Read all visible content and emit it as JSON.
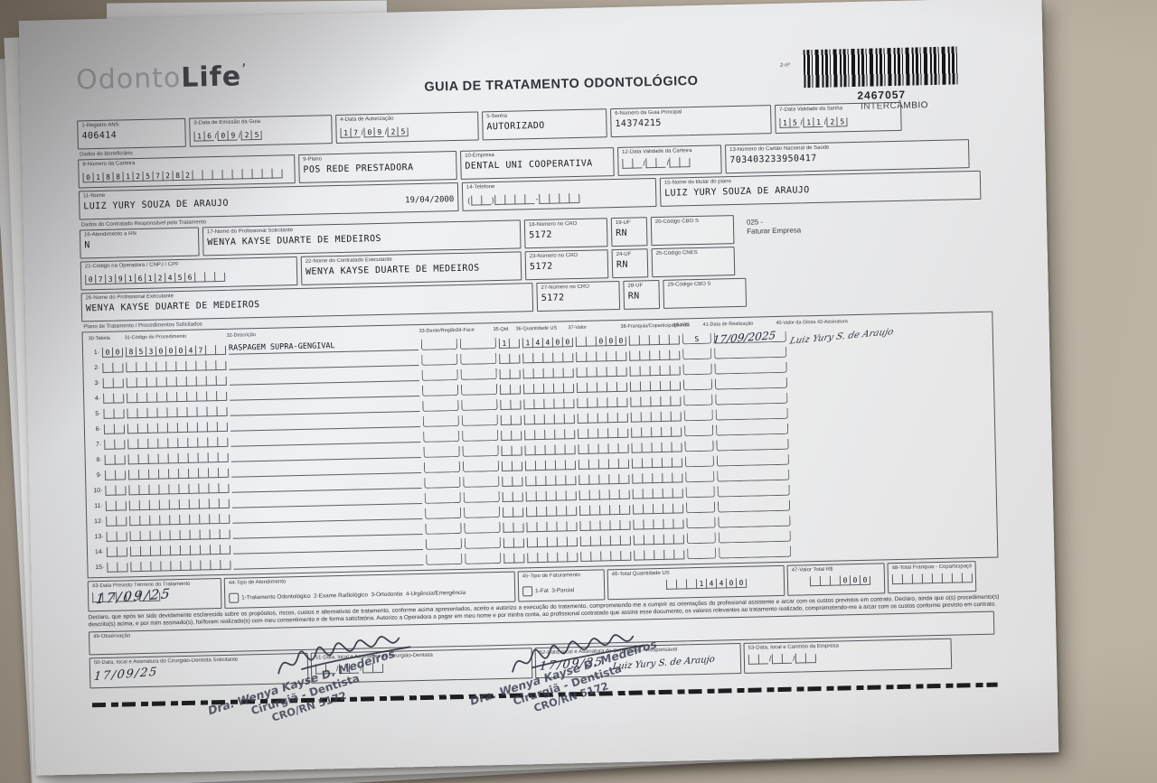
{
  "colors": {
    "desk": "#b0a89a",
    "paper": "#e9eaec",
    "ink": "#2c2c34",
    "handwriting": "#232838",
    "stamp": "#3d4356"
  },
  "logo": {
    "part1": "Odonto",
    "part2": "Life"
  },
  "title": "GUIA DE TRATAMENTO ODONTOLÓGICO",
  "barcode": {
    "corner": "2-nº",
    "number": "2467057",
    "label": "INTERCÂMBIO"
  },
  "sections": {
    "beneficiario": "Dados do Beneficiário",
    "contratado": "Dados do Contratado Responsável pelo Tratamento",
    "plano": "Plano de Tratamento / Procedimentos Solicitados"
  },
  "fields": {
    "f1": {
      "label": "1-Registro ANS",
      "value": "406414"
    },
    "f3": {
      "label": "3-Data de Emissão da Guia",
      "value": "16/09/25"
    },
    "f4": {
      "label": "4-Data de Autorização",
      "value": "17/09/25"
    },
    "f5": {
      "label": "5-Senha",
      "value": "AUTORIZADO"
    },
    "f6": {
      "label": "6-Número da Guia Principal",
      "value": "14374215"
    },
    "f7": {
      "label": "7-Data Validade da Senha",
      "value": "15/11/25"
    },
    "f8": {
      "label": "8-Número da Carteira",
      "value": "01881257282         "
    },
    "f9": {
      "label": "9-Plano",
      "value": "POS REDE PRESTADORA"
    },
    "f10": {
      "label": "10-Empresa",
      "value": "DENTAL UNI COOPERATIVA"
    },
    "f11": {
      "label": "11-Nome",
      "value": "LUIZ YURY SOUZA DE ARAUJO",
      "birth": "19/04/2000"
    },
    "f12": {
      "label": "12-Data Validade da Carteira",
      "value": "  /  /  "
    },
    "f13": {
      "label": "13-Número do Cartão Nacional de Saúde",
      "value": "703403233950417"
    },
    "f14": {
      "label": "14-Telefone",
      "value": "(  )    -    "
    },
    "f15": {
      "label": "15-Nome do titular do plano",
      "value": "LUIZ YURY SOUZA DE ARAUJO"
    },
    "f16": {
      "label": "16-Atendimento a RN",
      "value": "N"
    },
    "f17": {
      "label": "17-Nome do Profissional Solicitante",
      "value": "WENYA KAYSE DUARTE DE MEDEIROS"
    },
    "f18": {
      "label": "18-Número no CRO",
      "value": "5172"
    },
    "f19": {
      "label": "19-UF",
      "value": "RN"
    },
    "f20": {
      "label": "20-Código CBO S",
      "value": ""
    },
    "note_code": "025 -",
    "note_text": "Faturar Empresa",
    "f21": {
      "label": "21-Código na Operadora / CNPJ / CPF",
      "value": "07391612456   "
    },
    "f22": {
      "label": "22-Nome do Contratado Executante",
      "value": "WENYA KAYSE DUARTE DE MEDEIROS"
    },
    "f23": {
      "label": "23-Número no CRO",
      "value": "5172"
    },
    "f24": {
      "label": "24-UF",
      "value": "RN"
    },
    "f25": {
      "label": "25-Código CNES",
      "value": ""
    },
    "f26": {
      "label": "26-Nome do Profissional Executante",
      "value": "WENYA KAYSE DUARTE DE MEDEIROS"
    },
    "f27": {
      "label": "27-Número no CRO",
      "value": "5172"
    },
    "f28": {
      "label": "28-UF",
      "value": "RN"
    },
    "f29": {
      "label": "29-Código CBO S",
      "value": ""
    },
    "f43": {
      "label": "43-Data Previsto Término do Tratamento",
      "comb": "  /  /  ",
      "hand": "17/09/25"
    },
    "f44": {
      "label": "44-Tipo de Atendimento",
      "options": "1-Tratamento Odontológico  2-Exame Radiológico  3-Ortodontia  4-Urgência/Emergência"
    },
    "f45": {
      "label": "45-Tipo de Faturamento",
      "options": "1-Fat  3-Parcial"
    },
    "f46": {
      "label": "46-Total Quantidade US",
      "value": "   14400"
    },
    "f47": {
      "label": "47-Valor Total R$",
      "value": "   000"
    },
    "f48": {
      "label": "48-Total Franquia - Coparticipação R$",
      "value": "        "
    },
    "f49": {
      "label": "49-Observação",
      "value": ""
    },
    "f50": {
      "label": "50-Data, local e Assinatura do Cirurgião-Dentista Solicitante",
      "hand": "17/09/25"
    },
    "f51": {
      "label": "51-Data, local e Assinatura do Cirurgião-Dentista",
      "value": "  /  /  "
    },
    "f52": {
      "label": "52-Data, local e Assinatura do Beneficiário / Responsável",
      "hand": "17/09/25",
      "signature": "Luiz Yury S. de Araujo"
    },
    "f53": {
      "label": "53-Data, local e Carimbo da Empresa",
      "value": "  /  /  "
    }
  },
  "table": {
    "headers": [
      "30-Tabela",
      "31-Código do Procedimento",
      "32-Descrição",
      "33-Dente/Região",
      "34-Face",
      "35-Qtd",
      "36-Quantidade US",
      "37-Valor",
      "38-Franquia/Coparticipação R$",
      "39-Aut",
      "41-Data de Realização",
      "40-Valor da Glosa  42-Assinatura"
    ],
    "rows": [
      {
        "tabela": "00",
        "codigo": "85300047  ",
        "descricao": "RASPAGEM SUPRA-GENGIVAL",
        "dente": "",
        "face": "",
        "qtd": "1 ",
        "qus": "14400",
        "valor": "  000",
        "franquia": "     ",
        "aut": "S",
        "realizacao": "17/09/2025",
        "assinatura": "Luiz Yury S. de Araujo"
      },
      {},
      {},
      {},
      {},
      {},
      {},
      {},
      {},
      {},
      {},
      {},
      {},
      {},
      {}
    ]
  },
  "declaration": "Declaro, que após ter sido devidamente esclarecido sobre os propósitos, riscos, custos e alternativas de tratamento, conforme acima apresentados, aceito e autorizo a execução do tratamento, comprometendo-me a cumprir as orientações do profissional assistente e arcar com os custos previstos em contrato. Declaro, ainda que o(s) procedimento(s) descrito(s) acima, e por mim assinado(s), foi/foram realizado(s) com meu consentimento e de forma satisfatória. Autorizo a Operadora a pagar em meu nome e por minha conta, ao profissional contratado que assina esse documento, os valores relevantes ao tratamento realizado, comprometendo-me a arcar com os custos conforme previsto em contrato.",
  "stamp": {
    "line1": "Dra. Wenya Kayse D. Medeiros",
    "line2": "Cirurgiã - Dentista",
    "line3": "CRO/RN 5172"
  }
}
